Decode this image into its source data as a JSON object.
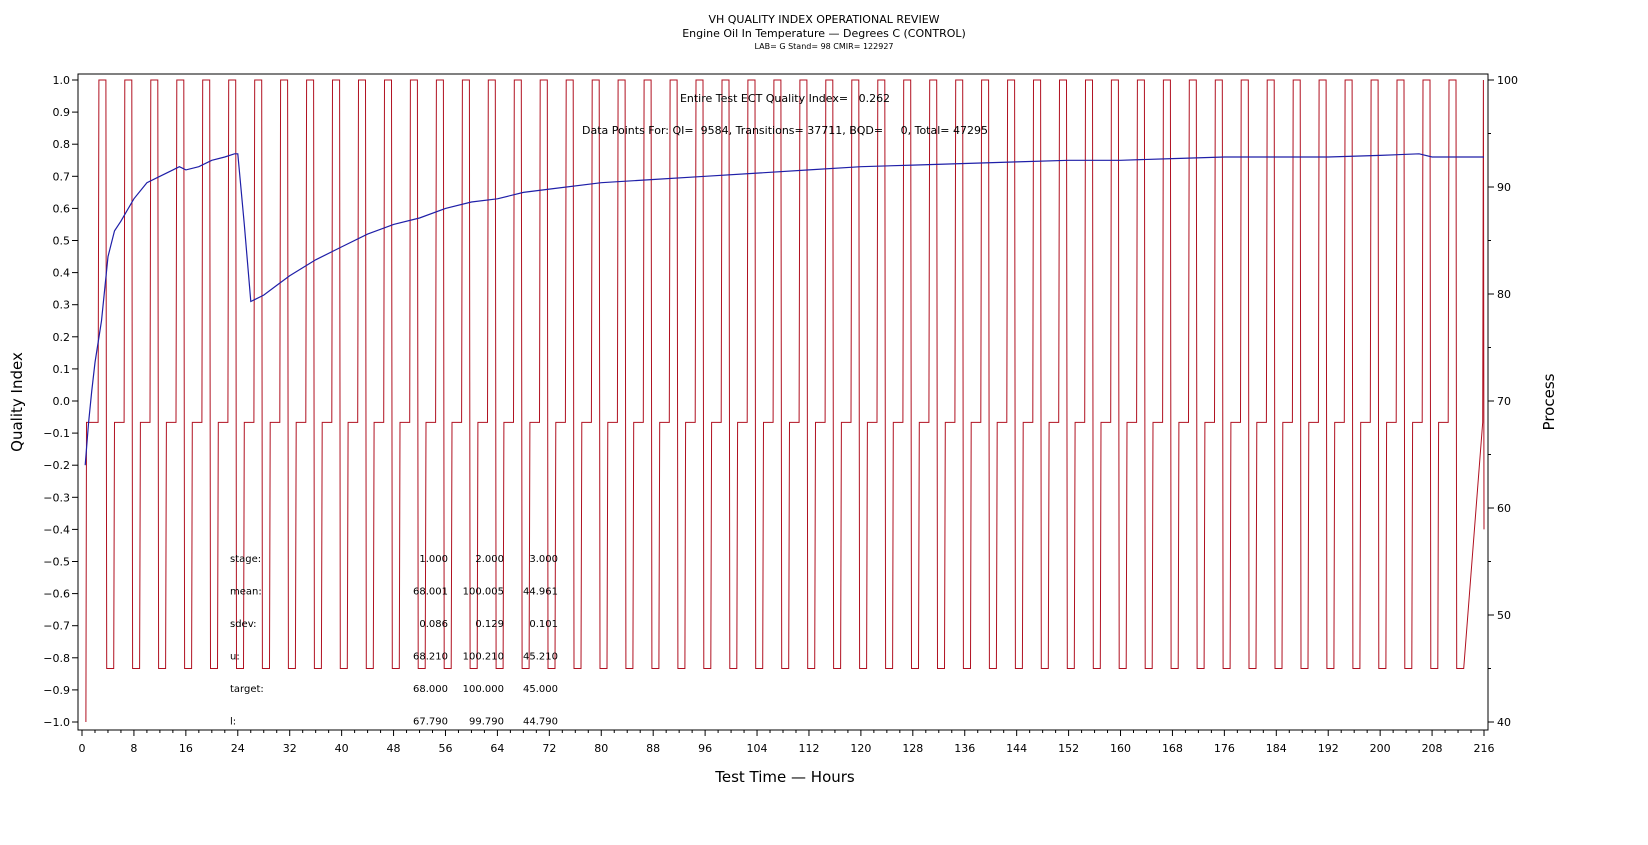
{
  "titles": {
    "title": "VH QUALITY INDEX OPERATIONAL REVIEW",
    "subtitle": "Engine Oil In Temperature — Degrees C (CONTROL)",
    "lab_line": "LAB= G Stand= 98 CMIR= 122927"
  },
  "annotations": {
    "qi_text": "Entire Test ECT Quality Index=   0.262",
    "points_text": "Data Points For: QI=  9584, Transitions= 37711, BQD=     0, Total= 47295"
  },
  "stats_table": {
    "rows": [
      {
        "label": "stage:",
        "values": [
          "1.000",
          "2.000",
          "3.000"
        ]
      },
      {
        "label": "mean:",
        "values": [
          "68.001",
          "100.005",
          "44.961"
        ]
      },
      {
        "label": "sdev:",
        "values": [
          "0.086",
          "0.129",
          "0.101"
        ]
      },
      {
        "label": "u:",
        "values": [
          "68.210",
          "100.210",
          "45.210"
        ]
      },
      {
        "label": "target:",
        "values": [
          "68.000",
          "100.000",
          "45.000"
        ]
      },
      {
        "label": "l:",
        "values": [
          "67.790",
          "99.790",
          "44.790"
        ]
      }
    ]
  },
  "chart_data": {
    "type": "line",
    "title": "VH QUALITY INDEX OPERATIONAL REVIEW",
    "subtitle": "Engine Oil In Temperature — Degrees C (CONTROL)",
    "xlabel": "Test Time — Hours",
    "ylabel_left": "Quality Index",
    "ylabel_right": "Process",
    "xlim": [
      0,
      216
    ],
    "ylim_left": [
      -1.0,
      1.0
    ],
    "ylim_right": [
      40,
      100
    ],
    "x_ticks": [
      0,
      8,
      16,
      24,
      32,
      40,
      48,
      56,
      64,
      72,
      80,
      88,
      96,
      104,
      112,
      120,
      128,
      136,
      144,
      152,
      160,
      168,
      176,
      184,
      192,
      200,
      208,
      216
    ],
    "y_left_ticks": [
      "1.0",
      "0.9",
      "0.8",
      "0.7",
      "0.6",
      "0.5",
      "0.4",
      "0.3",
      "0.2",
      "0.1",
      "0.0",
      "−0.1",
      "−0.2",
      "−0.3",
      "−0.4",
      "−0.5",
      "−0.6",
      "−0.7",
      "−0.8",
      "−0.9",
      "−1.0"
    ],
    "y_right_ticks": [
      40,
      50,
      60,
      70,
      80,
      90,
      100
    ],
    "grid": false,
    "series": [
      {
        "axis": "left",
        "color": "#1f1fa8",
        "x": [
          0.5,
          1,
          1.5,
          2,
          3,
          4,
          5,
          6,
          8,
          10,
          12,
          14,
          15,
          16,
          18,
          20,
          22,
          23.5,
          24,
          25,
          26,
          28,
          30,
          32,
          36,
          40,
          44,
          48,
          52,
          56,
          60,
          64,
          68,
          72,
          80,
          88,
          96,
          104,
          112,
          120,
          128,
          136,
          144,
          152,
          160,
          168,
          176,
          184,
          192,
          200,
          206,
          208,
          216
        ],
        "values": [
          -0.2,
          -0.07,
          0.03,
          0.12,
          0.25,
          0.45,
          0.53,
          0.56,
          0.63,
          0.68,
          0.7,
          0.72,
          0.73,
          0.72,
          0.73,
          0.75,
          0.76,
          0.77,
          0.77,
          0.55,
          0.31,
          0.33,
          0.36,
          0.39,
          0.44,
          0.48,
          0.52,
          0.55,
          0.57,
          0.6,
          0.62,
          0.63,
          0.65,
          0.66,
          0.68,
          0.69,
          0.7,
          0.71,
          0.72,
          0.73,
          0.735,
          0.74,
          0.745,
          0.75,
          0.75,
          0.755,
          0.76,
          0.76,
          0.76,
          0.765,
          0.77,
          0.76,
          0.76
        ]
      },
      {
        "axis": "right",
        "color": "#b01020",
        "levels": [
          68,
          100,
          45
        ],
        "cycle_hours": 4,
        "start_hour": 1,
        "end_hour": 216,
        "stage_fractions": [
          0.4,
          0.3,
          0.3
        ]
      }
    ]
  }
}
